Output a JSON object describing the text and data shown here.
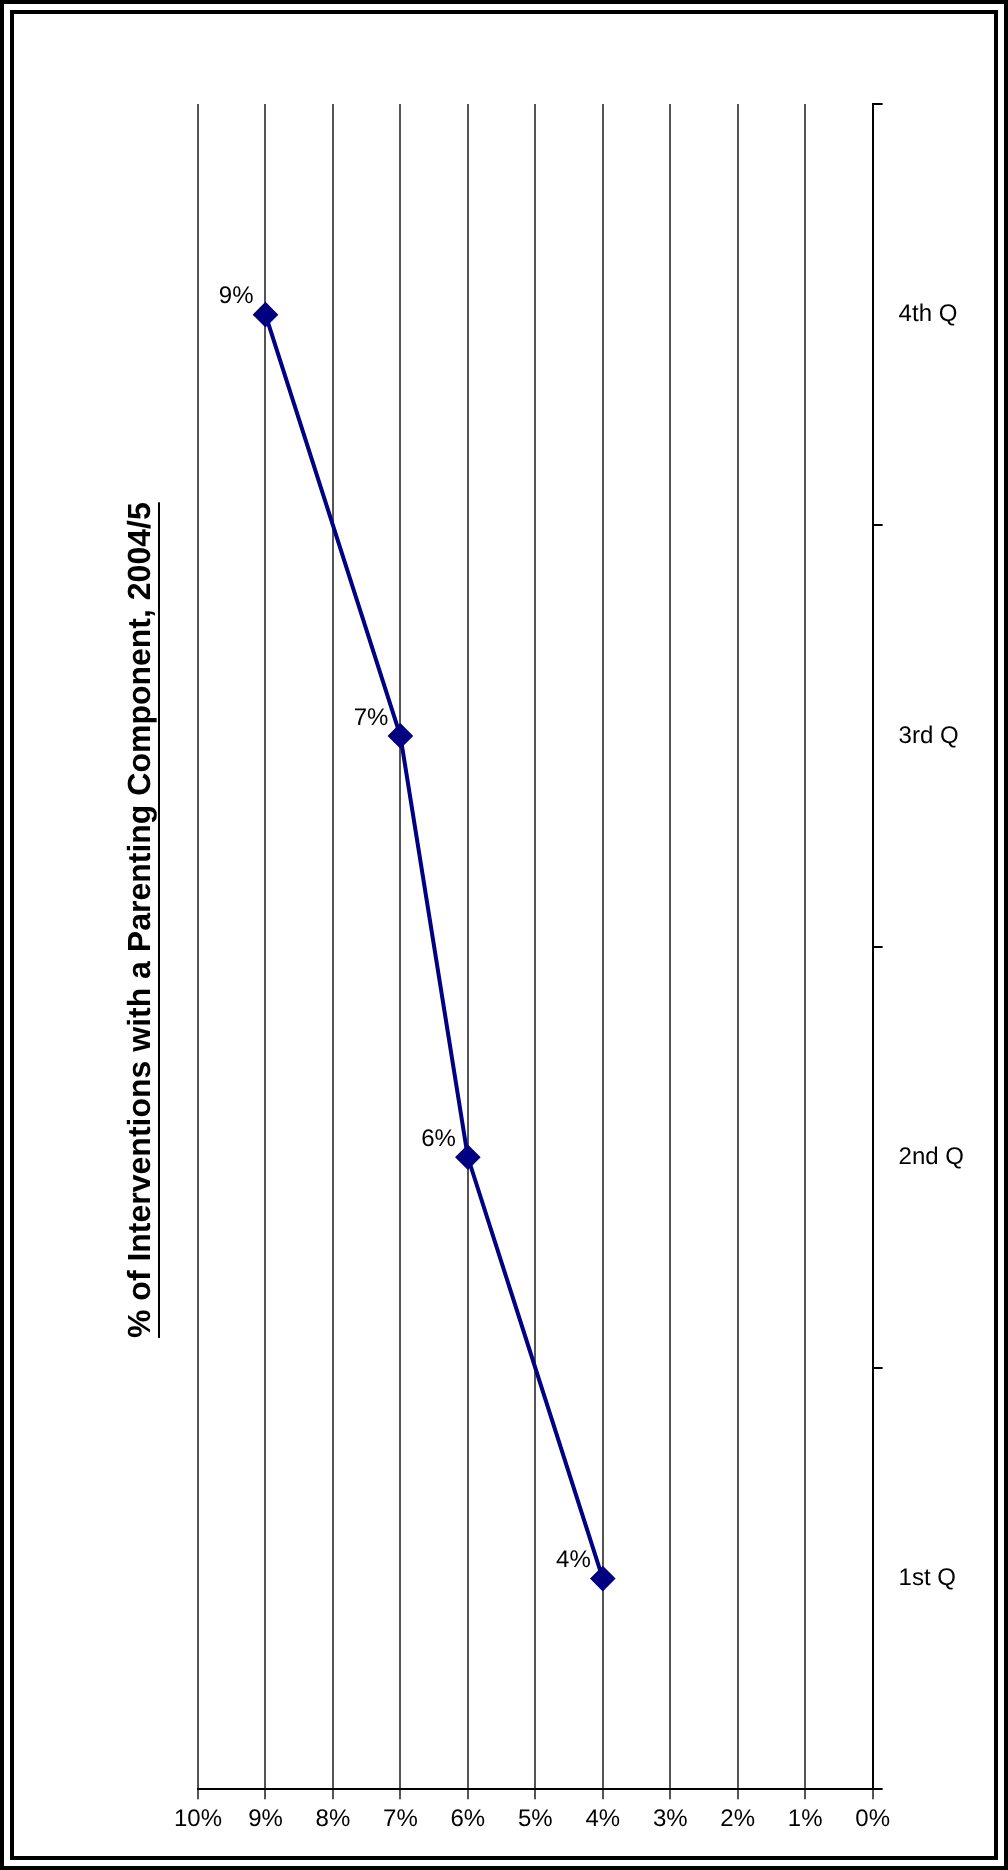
{
  "chart_data": {
    "type": "line",
    "title": "% of Interventions with a Parenting Component, 2004/5",
    "orientation": "horizontal",
    "categories": [
      "4th Q",
      "3rd Q",
      "2nd Q",
      "1st Q"
    ],
    "series": [
      {
        "color": "#000080",
        "values": [
          9,
          7,
          6,
          4
        ],
        "value_labels": [
          "9%",
          "7%",
          "6%",
          "4%"
        ]
      }
    ],
    "xlim": [
      10,
      0
    ],
    "xticks": [
      {
        "value": 10,
        "label": "10%"
      },
      {
        "value": 9,
        "label": "9%"
      },
      {
        "value": 8,
        "label": "8%"
      },
      {
        "value": 7,
        "label": "7%"
      },
      {
        "value": 6,
        "label": "6%"
      },
      {
        "value": 5,
        "label": "5%"
      },
      {
        "value": 4,
        "label": "4%"
      },
      {
        "value": 3,
        "label": "3%"
      },
      {
        "value": 2,
        "label": "2%"
      },
      {
        "value": 1,
        "label": "1%"
      },
      {
        "value": 0,
        "label": "0%"
      }
    ],
    "grid": "x",
    "marker": "diamond",
    "line_style": "solid",
    "legend": false
  }
}
